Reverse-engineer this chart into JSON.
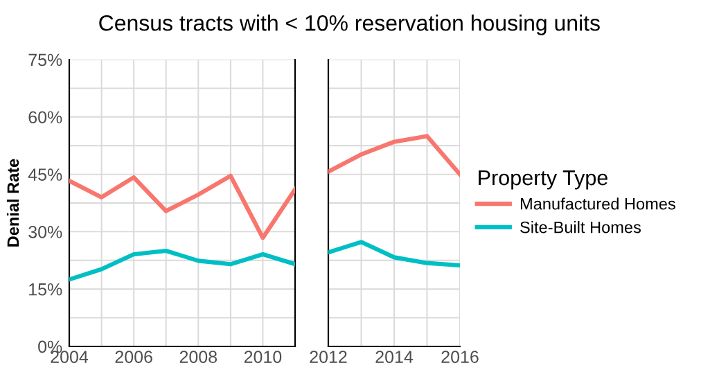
{
  "chart_data": [
    {
      "type": "line",
      "title": "Census tracts with < 10% reservation housing units",
      "ylabel": "Denial Rate",
      "x": [
        2004,
        2005,
        2006,
        2007,
        2008,
        2009,
        2010,
        2011
      ],
      "series": [
        {
          "color": "#f8766d",
          "values": [
            43.3,
            39.0,
            44.2,
            35.4,
            39.7,
            44.6,
            28.4,
            41.1
          ]
        },
        {
          "color": "#00bfc4",
          "values": [
            17.5,
            20.2,
            24.1,
            25.0,
            22.4,
            21.5,
            24.1,
            21.5
          ]
        }
      ],
      "xlim": [
        2004,
        2011
      ],
      "xticks": [
        2004,
        {
          "value": 2005,
          "label": null
        },
        2006,
        {
          "value": 2007,
          "label": null
        },
        2008,
        {
          "value": 2009,
          "label": null
        },
        2010,
        {
          "value": 2011,
          "label": null
        }
      ],
      "ylim": [
        0,
        75
      ],
      "yticks": [
        {
          "value": 0,
          "label": "0%"
        },
        {
          "value": 7.5,
          "label": null
        },
        {
          "value": 15,
          "label": "15%"
        },
        {
          "value": 22.5,
          "label": null
        },
        {
          "value": 30,
          "label": "30%"
        },
        {
          "value": 37.5,
          "label": null
        },
        {
          "value": 45,
          "label": "45%"
        },
        {
          "value": 52.5,
          "label": null
        },
        {
          "value": 60,
          "label": "60%"
        },
        {
          "value": 67.5,
          "label": null
        },
        {
          "value": 75,
          "label": "75%"
        }
      ],
      "grid": true,
      "legend": false
    },
    {
      "type": "line",
      "legend_title": "Property Type",
      "x": [
        2012,
        2013,
        2014,
        2015,
        2016
      ],
      "series": [
        {
          "name": "Manufactured Homes",
          "color": "#f8766d",
          "values": [
            45.7,
            50.2,
            53.5,
            55.0,
            45.0
          ]
        },
        {
          "name": "Site-Built Homes",
          "color": "#00bfc4",
          "values": [
            24.6,
            27.3,
            23.3,
            21.8,
            21.2
          ]
        }
      ],
      "xlim": [
        2012,
        2016
      ],
      "xticks": [
        2012,
        {
          "value": 2013,
          "label": null
        },
        2014,
        {
          "value": 2015,
          "label": null
        },
        2016
      ],
      "ylim": [
        0,
        75
      ],
      "yticks": [
        {
          "value": 0,
          "label": null
        },
        {
          "value": 7.5,
          "label": null
        },
        {
          "value": 15,
          "label": null
        },
        {
          "value": 22.5,
          "label": null
        },
        {
          "value": 30,
          "label": null
        },
        {
          "value": 37.5,
          "label": null
        },
        {
          "value": 45,
          "label": null
        },
        {
          "value": 52.5,
          "label": null
        },
        {
          "value": 60,
          "label": null
        },
        {
          "value": 67.5,
          "label": null
        },
        {
          "value": 75,
          "label": null
        }
      ],
      "tick_labels": "x",
      "grid": true,
      "legend": "right"
    }
  ]
}
